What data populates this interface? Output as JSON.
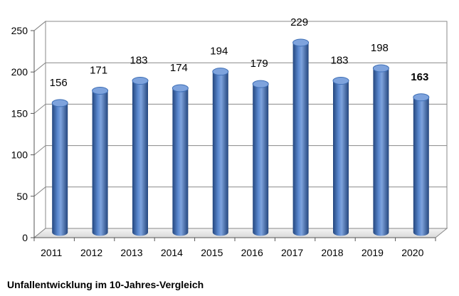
{
  "caption": "Unfallentwicklung im 10-Jahres-Vergleich",
  "chart_data": {
    "type": "bar",
    "categories": [
      "2011",
      "2012",
      "2013",
      "2014",
      "2015",
      "2016",
      "2017",
      "2018",
      "2019",
      "2020"
    ],
    "values": [
      156,
      171,
      183,
      174,
      194,
      179,
      229,
      183,
      198,
      163
    ],
    "bold_labels": [
      "2020"
    ],
    "title": "",
    "xlabel": "",
    "ylabel": "",
    "ylim": [
      0,
      250
    ],
    "yticks": [
      0,
      50,
      100,
      150,
      200,
      250
    ],
    "grid": true,
    "legend": "none",
    "bar_color": "#3f6fb5",
    "bar_highlight": "#7ea3dd",
    "bar_shadow": "#24467d"
  }
}
